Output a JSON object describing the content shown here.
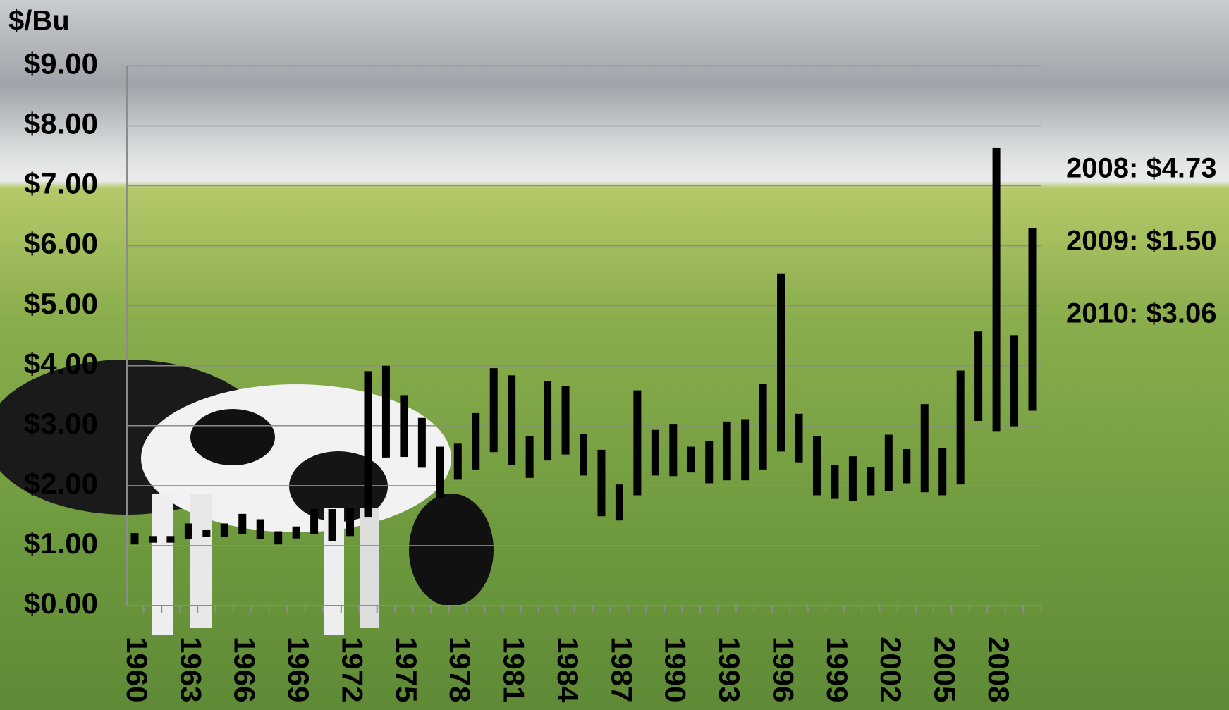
{
  "chart_data": {
    "type": "range-bar",
    "y_axis_title": "$/Bu",
    "categories": [
      "1960",
      null,
      null,
      "1963",
      null,
      null,
      "1966",
      null,
      null,
      "1969",
      null,
      null,
      "1972",
      null,
      null,
      "1975",
      null,
      null,
      "1978",
      null,
      null,
      "1981",
      null,
      null,
      "1984",
      null,
      null,
      "1987",
      null,
      null,
      "1990",
      null,
      null,
      "1993",
      null,
      null,
      "1996",
      null,
      null,
      "1999",
      null,
      null,
      "2002",
      null,
      null,
      "2005",
      null,
      null,
      "2008",
      null,
      null
    ],
    "low": [
      1.02,
      1.05,
      1.05,
      1.11,
      1.15,
      1.14,
      1.2,
      1.11,
      1.02,
      1.12,
      1.19,
      1.08,
      1.16,
      1.48,
      2.47,
      2.48,
      2.3,
      1.8,
      2.1,
      2.27,
      2.56,
      2.35,
      2.13,
      2.42,
      2.52,
      2.17,
      1.49,
      1.42,
      1.84,
      2.17,
      2.16,
      2.22,
      2.04,
      2.09,
      2.09,
      2.27,
      2.57,
      2.39,
      1.84,
      1.78,
      1.74,
      1.84,
      1.91,
      2.04,
      1.89,
      1.84,
      2.02,
      3.08,
      2.9,
      2.99,
      3.25
    ],
    "high": [
      1.21,
      1.16,
      1.16,
      1.37,
      1.27,
      1.37,
      1.53,
      1.44,
      1.24,
      1.32,
      1.61,
      1.61,
      1.63,
      3.91,
      4.0,
      3.51,
      3.13,
      2.65,
      2.7,
      3.21,
      3.96,
      3.84,
      2.83,
      3.75,
      3.66,
      2.86,
      2.6,
      2.02,
      3.59,
      2.93,
      3.02,
      2.65,
      2.74,
      3.07,
      3.11,
      3.7,
      5.54,
      3.2,
      2.83,
      2.34,
      2.49,
      2.31,
      2.85,
      2.61,
      3.36,
      2.63,
      3.92,
      4.57,
      7.63,
      4.51,
      6.3
    ],
    "color": "#000000",
    "ylim": [
      0,
      9
    ],
    "yticks": [
      {
        "value": 0,
        "label": "$0.00"
      },
      {
        "value": 1,
        "label": "$1.00"
      },
      {
        "value": 2,
        "label": "$2.00"
      },
      {
        "value": 3,
        "label": "$3.00"
      },
      {
        "value": 4,
        "label": "$4.00"
      },
      {
        "value": 5,
        "label": "$5.00"
      },
      {
        "value": 6,
        "label": "$6.00"
      },
      {
        "value": 7,
        "label": "$7.00"
      },
      {
        "value": 8,
        "label": "$8.00"
      },
      {
        "value": 9,
        "label": "$9.00"
      }
    ],
    "grid": true,
    "annotations": [
      "2008: $4.73",
      "2009: $1.50",
      "2010: $3.06"
    ]
  }
}
